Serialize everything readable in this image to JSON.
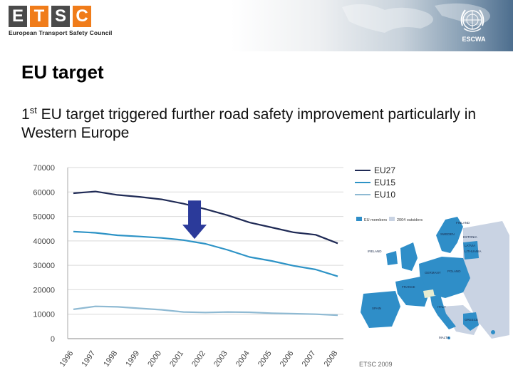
{
  "header": {
    "logo_letters": [
      "E",
      "T",
      "S",
      "C"
    ],
    "logo_subtitle": "European Transport Safety Council",
    "org_label": "ESCWA"
  },
  "slide": {
    "title": "EU target",
    "subtitle_ordinal": "1",
    "subtitle_sup": "st",
    "subtitle_rest": " EU target triggered further road safety improvement particularly in Western Europe"
  },
  "chart_data": {
    "type": "line",
    "x": [
      "1996",
      "1997",
      "1998",
      "1999",
      "2000",
      "2001",
      "2002",
      "2003",
      "2004",
      "2005",
      "2006",
      "2007",
      "2008"
    ],
    "yticks": [
      "0",
      "10000",
      "20000",
      "30000",
      "40000",
      "50000",
      "60000",
      "70000"
    ],
    "ylim": [
      0,
      70000
    ],
    "grid": true,
    "legend_position": "right",
    "series": [
      {
        "name": "EU27",
        "color": "#1f2a55",
        "values": [
          59500,
          60200,
          58800,
          58000,
          57000,
          55200,
          53000,
          50500,
          47500,
          45500,
          43500,
          42500,
          39000
        ]
      },
      {
        "name": "EU15",
        "color": "#2d93c6",
        "values": [
          43800,
          43300,
          42300,
          41800,
          41200,
          40300,
          38800,
          36300,
          33400,
          31800,
          29800,
          28300,
          25500
        ]
      },
      {
        "name": "EU10",
        "color": "#8fbad3",
        "values": [
          12000,
          13200,
          13000,
          12400,
          11800,
          10900,
          10700,
          10900,
          10800,
          10400,
          10200,
          10000,
          9600
        ]
      }
    ],
    "annotation": "down-arrow"
  },
  "map": {
    "legend_members": "EU members",
    "legend_outsiders": "2004 outsiders",
    "labels": [
      "FINLAND",
      "SWEDEN",
      "ESTONIA",
      "LATVIA",
      "LITHUANIA",
      "IRELAND",
      "POLAND",
      "GERMANY",
      "FRANCE",
      "SPAIN",
      "ITALY",
      "GREECE",
      "MALTA"
    ],
    "credit": "ETSC 2009"
  },
  "colors": {
    "eu27": "#1f2a55",
    "eu15": "#2d93c6",
    "eu10": "#8fbad3",
    "arrow": "#2b3a9a",
    "map_member": "#2f8ec8",
    "map_other": "#c9d3e3"
  }
}
